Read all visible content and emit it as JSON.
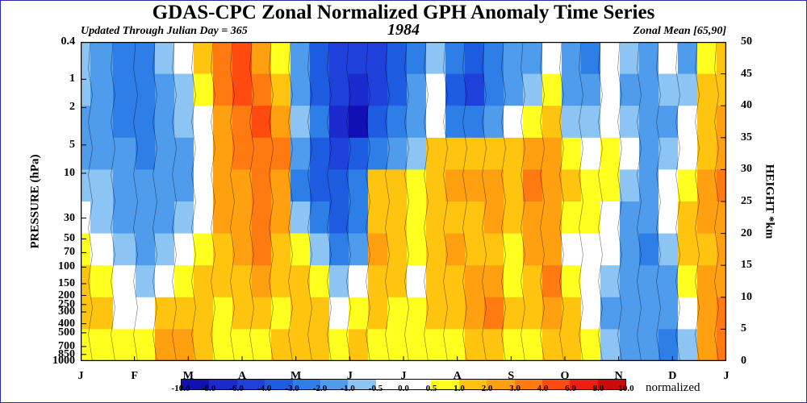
{
  "header": {
    "title": "GDAS-CPC Zonal Normalized GPH Anomaly Time Series",
    "subtitle_left": "Updated Through Julian Day = 365",
    "year": "1984",
    "subtitle_right": "Zonal Mean [65,90]"
  },
  "chart_data": {
    "type": "heatmap",
    "title": "GDAS-CPC Zonal Normalized GPH Anomaly Time Series",
    "ylabel_left": "PRESSURE (hPa)",
    "ylabel_right": "HEIGHT *km",
    "left_ticks": [
      "0.4",
      "1",
      "2",
      "5",
      "10",
      "30",
      "50",
      "70",
      "100",
      "150",
      "200",
      "250",
      "300",
      "400",
      "500",
      "700",
      "850",
      "1000"
    ],
    "right_ticks": [
      "50",
      "45",
      "40",
      "35",
      "30",
      "25",
      "20",
      "15",
      "10",
      "5",
      "0"
    ],
    "months": [
      "J",
      "F",
      "M",
      "A",
      "M",
      "J",
      "J",
      "A",
      "S",
      "O",
      "N",
      "D",
      "J"
    ],
    "colorbar": {
      "label": "normalized",
      "labels": [
        "-10.0",
        "-8.0",
        "-6.0",
        "-4.0",
        "-3.0",
        "-2.0",
        "-1.0",
        "-0.5",
        "0.0",
        "0.5",
        "1.0",
        "2.0",
        "3.0",
        "4.0",
        "6.0",
        "8.0",
        "10.0"
      ],
      "colors": [
        "#1010b4",
        "#1a2acc",
        "#2040dc",
        "#1e5ce2",
        "#2d7ee6",
        "#4f9cec",
        "#8cc4f4",
        "#ffffff",
        "#ffffff",
        "#ffff20",
        "#ffc410",
        "#ffa010",
        "#ff7a10",
        "#ff4a10",
        "#ee1d10",
        "#cc0a0a"
      ]
    },
    "columns": [
      {
        "x": 0.0,
        "v": [
          -1.0,
          -1.0,
          -1.5,
          -1.5,
          -1.0,
          -0.5,
          0.5,
          1.0,
          1.0,
          0.5
        ]
      },
      {
        "x": 0.03,
        "v": [
          -2.0,
          -2.0,
          -2.0,
          -1.5,
          -1.0,
          -1.0,
          -0.5,
          0.5,
          1.0,
          0.5
        ]
      },
      {
        "x": 0.07,
        "v": [
          -3.0,
          -3.0,
          -2.5,
          -2.0,
          -2.0,
          -1.5,
          -1.0,
          -0.5,
          0.0,
          0.5
        ]
      },
      {
        "x": 0.1,
        "v": [
          -2.5,
          -3.0,
          -3.0,
          -2.5,
          -2.0,
          -2.0,
          -1.5,
          -1.0,
          -0.5,
          0.5
        ]
      },
      {
        "x": 0.13,
        "v": [
          -1.0,
          -1.5,
          -2.0,
          -2.0,
          -2.0,
          -1.5,
          -1.0,
          -0.5,
          1.0,
          2.0
        ]
      },
      {
        "x": 0.16,
        "v": [
          -0.5,
          -1.0,
          -1.0,
          -1.5,
          -1.5,
          -1.0,
          -0.5,
          0.5,
          1.5,
          2.5
        ]
      },
      {
        "x": 0.19,
        "v": [
          1.0,
          0.5,
          0.0,
          -0.5,
          -0.5,
          -0.5,
          0.5,
          1.0,
          1.5,
          1.0
        ]
      },
      {
        "x": 0.22,
        "v": [
          3.5,
          3.0,
          2.5,
          2.5,
          2.0,
          2.0,
          1.5,
          1.0,
          0.5,
          0.5
        ]
      },
      {
        "x": 0.25,
        "v": [
          4.5,
          4.0,
          3.5,
          3.0,
          2.5,
          2.5,
          2.0,
          1.5,
          1.0,
          0.5
        ]
      },
      {
        "x": 0.28,
        "v": [
          2.5,
          3.5,
          4.0,
          3.5,
          3.0,
          3.5,
          3.5,
          2.5,
          1.0,
          0.5
        ]
      },
      {
        "x": 0.31,
        "v": [
          0.5,
          1.5,
          2.5,
          3.0,
          2.5,
          2.0,
          1.5,
          1.0,
          0.5,
          1.0
        ]
      },
      {
        "x": 0.34,
        "v": [
          -2.0,
          -1.5,
          -1.0,
          -2.0,
          -2.5,
          -1.0,
          0.5,
          1.0,
          1.5,
          1.5
        ]
      },
      {
        "x": 0.37,
        "v": [
          -4.0,
          -4.0,
          -3.0,
          -4.0,
          -3.5,
          -2.5,
          -1.0,
          0.5,
          1.0,
          1.0
        ]
      },
      {
        "x": 0.4,
        "v": [
          -5.0,
          -6.0,
          -8.0,
          -5.0,
          -3.5,
          -4.0,
          -2.5,
          -1.0,
          0.0,
          0.5
        ]
      },
      {
        "x": 0.43,
        "v": [
          -6.0,
          -7.0,
          -9.0,
          -4.0,
          -2.5,
          -2.5,
          -1.5,
          -0.5,
          0.5,
          1.0
        ]
      },
      {
        "x": 0.46,
        "v": [
          -6.0,
          -5.0,
          -4.0,
          -2.5,
          1.5,
          1.0,
          2.0,
          1.5,
          1.0,
          0.5
        ]
      },
      {
        "x": 0.49,
        "v": [
          -4.0,
          -4.0,
          -3.0,
          -1.5,
          1.5,
          1.0,
          1.5,
          1.0,
          0.5,
          0.5
        ]
      },
      {
        "x": 0.52,
        "v": [
          -2.5,
          -2.0,
          -1.5,
          -1.0,
          0.5,
          0.5,
          0.5,
          0.0,
          0.5,
          0.5
        ]
      },
      {
        "x": 0.55,
        "v": [
          -1.0,
          -0.5,
          -0.5,
          1.0,
          1.5,
          1.0,
          1.5,
          1.5,
          1.0,
          0.5
        ]
      },
      {
        "x": 0.58,
        "v": [
          -3.0,
          -3.5,
          -2.5,
          1.5,
          2.0,
          1.5,
          2.0,
          1.5,
          1.0,
          0.5
        ]
      },
      {
        "x": 0.61,
        "v": [
          -4.0,
          -4.5,
          -3.0,
          1.0,
          2.0,
          1.5,
          1.5,
          2.5,
          2.0,
          1.0
        ]
      },
      {
        "x": 0.64,
        "v": [
          -3.0,
          -3.0,
          -1.5,
          1.5,
          2.5,
          2.0,
          1.5,
          2.0,
          3.0,
          1.5
        ]
      },
      {
        "x": 0.67,
        "v": [
          -2.0,
          -1.5,
          -0.5,
          1.0,
          1.5,
          1.0,
          0.5,
          0.5,
          1.0,
          0.5
        ]
      },
      {
        "x": 0.7,
        "v": [
          -1.5,
          -1.0,
          0.5,
          2.0,
          3.5,
          2.5,
          2.0,
          1.5,
          1.0,
          0.5
        ]
      },
      {
        "x": 0.73,
        "v": [
          -0.5,
          0.5,
          1.0,
          2.0,
          2.5,
          2.0,
          2.5,
          3.0,
          2.0,
          1.0
        ]
      },
      {
        "x": 0.76,
        "v": [
          -2.0,
          -1.5,
          -1.0,
          0.5,
          1.0,
          0.5,
          0.0,
          0.5,
          1.0,
          1.0
        ]
      },
      {
        "x": 0.79,
        "v": [
          -2.5,
          -2.0,
          -1.0,
          -0.5,
          0.5,
          0.5,
          0.0,
          -0.5,
          -0.5,
          0.5
        ]
      },
      {
        "x": 0.82,
        "v": [
          -0.5,
          -0.5,
          0.0,
          0.5,
          0.5,
          0.0,
          -0.5,
          -1.0,
          -1.5,
          -1.0
        ]
      },
      {
        "x": 0.85,
        "v": [
          -1.0,
          -1.5,
          -1.0,
          -0.5,
          -1.0,
          -1.5,
          -1.5,
          -2.0,
          -2.0,
          -1.5
        ]
      },
      {
        "x": 0.88,
        "v": [
          -1.5,
          -2.0,
          -2.0,
          -1.5,
          -1.5,
          -2.0,
          -2.5,
          -2.0,
          -1.5,
          -1.5
        ]
      },
      {
        "x": 0.91,
        "v": [
          -0.5,
          -1.0,
          -1.5,
          -1.0,
          -0.5,
          -0.5,
          -1.0,
          -1.5,
          -2.0,
          -2.5
        ]
      },
      {
        "x": 0.94,
        "v": [
          -1.5,
          -1.0,
          -0.5,
          -0.5,
          0.5,
          1.0,
          1.0,
          0.5,
          -0.5,
          -1.0
        ]
      },
      {
        "x": 0.97,
        "v": [
          0.5,
          1.0,
          1.0,
          1.5,
          2.5,
          2.0,
          1.5,
          2.0,
          2.5,
          2.0
        ]
      },
      {
        "x": 1.0,
        "v": [
          1.0,
          1.5,
          2.0,
          2.5,
          3.0,
          2.5,
          2.0,
          2.5,
          3.5,
          3.0
        ]
      }
    ]
  }
}
